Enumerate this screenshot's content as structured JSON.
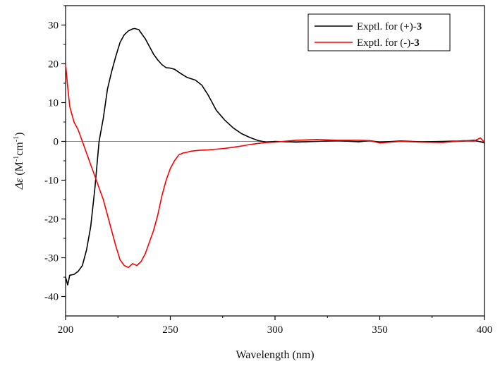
{
  "chart_data": {
    "type": "line",
    "xlabel": "Wavelength (nm)",
    "ylabel": {
      "prefix_italic": "Δε",
      "unit_open": " (M",
      "sup1": "-1",
      "unit_mid": "cm",
      "sup2": "-1",
      "unit_close": ")"
    },
    "xlim": [
      200,
      400
    ],
    "ylim": [
      -45,
      35
    ],
    "x_ticks": [
      200,
      250,
      300,
      350,
      400
    ],
    "y_ticks": [
      30,
      20,
      10,
      0,
      -10,
      -20,
      -30,
      -40
    ],
    "grid": false,
    "legend_position": "top-right",
    "series": [
      {
        "name": "Exptl. for (+)-3",
        "label_plain": "Exptl. for (+)-",
        "label_bold": "3",
        "color": "#000000",
        "x": [
          200,
          201,
          202,
          204,
          206,
          208,
          210,
          212,
          214,
          216,
          218,
          220,
          222,
          224,
          226,
          228,
          230,
          232,
          233,
          235,
          236,
          238,
          240,
          242,
          244,
          246,
          248,
          250,
          252,
          255,
          258,
          262,
          265,
          268,
          272,
          276,
          280,
          284,
          288,
          292,
          296,
          300,
          310,
          320,
          330,
          340,
          345,
          350,
          360,
          370,
          380,
          390,
          395,
          398,
          400
        ],
        "y": [
          -35,
          -37,
          -34.5,
          -34.3,
          -33.5,
          -32,
          -28,
          -22,
          -12,
          0,
          6,
          13.5,
          18,
          22,
          25.5,
          27.5,
          28.5,
          29,
          29.1,
          28.8,
          28,
          26.5,
          24.5,
          22.5,
          21,
          19.8,
          19,
          18.9,
          18.6,
          17.5,
          16.5,
          15.8,
          14.5,
          12,
          8,
          5.5,
          3.5,
          2,
          1,
          0.2,
          -0.2,
          0,
          -0.2,
          0,
          0.2,
          -0.1,
          0.2,
          -0.2,
          0.1,
          -0.1,
          0,
          0.1,
          0.3,
          -0.1,
          -0.4
        ]
      },
      {
        "name": "Exptl. for (-)-3",
        "label_plain": "Exptl. for (-)-",
        "label_bold": "3",
        "color": "#ff0000",
        "x": [
          200,
          201,
          202,
          204,
          206,
          208,
          210,
          212,
          214,
          216,
          218,
          220,
          222,
          224,
          226,
          228,
          230,
          232,
          234,
          236,
          238,
          240,
          242,
          244,
          246,
          248,
          250,
          252,
          254,
          256,
          258,
          260,
          264,
          268,
          272,
          276,
          280,
          284,
          288,
          292,
          296,
          300,
          310,
          320,
          330,
          340,
          345,
          350,
          360,
          370,
          380,
          390,
          395,
          398,
          400
        ],
        "y": [
          20,
          14,
          9,
          5,
          3,
          0,
          -3,
          -6,
          -9,
          -12,
          -15,
          -19,
          -23,
          -27,
          -30.5,
          -32,
          -32.5,
          -31.5,
          -32,
          -31,
          -29,
          -26,
          -23,
          -19,
          -14,
          -10,
          -7,
          -5,
          -3.5,
          -3,
          -2.8,
          -2.5,
          -2.3,
          -2.2,
          -2,
          -1.8,
          -1.5,
          -1.2,
          -0.8,
          -0.5,
          -0.3,
          -0.2,
          0.3,
          0.5,
          0.3,
          0.3,
          0.2,
          -0.4,
          0,
          -0.2,
          -0.3,
          0.2,
          0.1,
          0.9,
          -0.2
        ]
      }
    ]
  }
}
